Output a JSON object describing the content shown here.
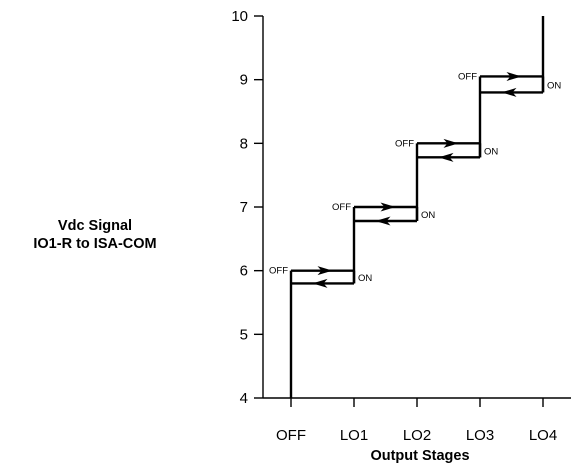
{
  "chart_data": {
    "type": "line",
    "title": "",
    "ylabel_lines": [
      "Vdc Signal",
      "IO1-R to ISA-COM"
    ],
    "xlabel": "Output Stages",
    "categories": [
      "OFF",
      "LO1",
      "LO2",
      "LO3",
      "LO4"
    ],
    "ylim": [
      4,
      10
    ],
    "yticks": [
      4,
      5,
      6,
      7,
      8,
      9,
      10
    ],
    "grid": false,
    "legend": "none",
    "hysteresis_steps": [
      {
        "from": "OFF",
        "to": "LO1",
        "on_vdc": 6.0,
        "off_vdc": 5.8,
        "on_label": "ON",
        "off_label": "OFF"
      },
      {
        "from": "LO1",
        "to": "LO2",
        "on_vdc": 7.0,
        "off_vdc": 6.78,
        "on_label": "ON",
        "off_label": "OFF"
      },
      {
        "from": "LO2",
        "to": "LO3",
        "on_vdc": 8.0,
        "off_vdc": 7.78,
        "on_label": "ON",
        "off_label": "OFF"
      },
      {
        "from": "LO3",
        "to": "LO4",
        "on_vdc": 9.05,
        "off_vdc": 8.8,
        "on_label": "ON",
        "off_label": "OFF"
      }
    ]
  },
  "colors": {
    "ink": "#000000",
    "background": "#ffffff"
  }
}
